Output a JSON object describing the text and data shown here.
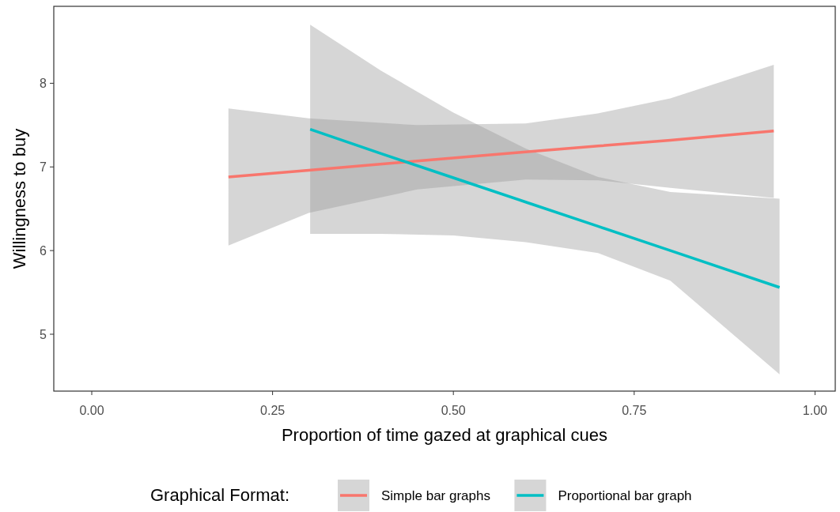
{
  "chart_data": {
    "type": "line",
    "xlabel": "Proportion of time gazed at graphical cues",
    "ylabel": "Willingness to buy",
    "legend_title": "Graphical Format:",
    "legend": "bottom",
    "grid": false,
    "marker": "none",
    "line_style": "solid",
    "xlim": [
      -0.0525,
      1.028
    ],
    "xticks": [
      {
        "value": 0,
        "label": "0.00"
      },
      {
        "value": 0.25,
        "label": "0.25"
      },
      {
        "value": 0.5,
        "label": "0.50"
      },
      {
        "value": 0.75,
        "label": "0.75"
      },
      {
        "value": 1,
        "label": "1.00"
      }
    ],
    "ylim": [
      4.32,
      8.92
    ],
    "yticks": [
      5,
      6,
      7,
      8
    ],
    "series": [
      {
        "name": "Simple bar graphs",
        "color": "#f8766d",
        "x": [
          0.189,
          0.3,
          0.45,
          0.6,
          0.7,
          0.8,
          0.943
        ],
        "values": [
          6.88,
          6.96,
          7.07,
          7.18,
          7.25,
          7.32,
          7.43
        ],
        "lower": [
          6.06,
          6.45,
          6.73,
          6.85,
          6.84,
          6.75,
          6.63
        ],
        "upper": [
          7.7,
          7.58,
          7.5,
          7.52,
          7.64,
          7.82,
          8.22
        ]
      },
      {
        "name": "Proportional bar graph",
        "color": "#00bfc4",
        "x": [
          0.302,
          0.4,
          0.5,
          0.6,
          0.7,
          0.8,
          0.951
        ],
        "values": [
          7.45,
          7.16,
          6.87,
          6.58,
          6.29,
          6.0,
          5.56
        ],
        "lower": [
          6.2,
          6.2,
          6.18,
          6.1,
          5.97,
          5.64,
          4.52
        ],
        "upper": [
          8.7,
          8.15,
          7.65,
          7.22,
          6.88,
          6.7,
          6.62
        ]
      }
    ]
  }
}
